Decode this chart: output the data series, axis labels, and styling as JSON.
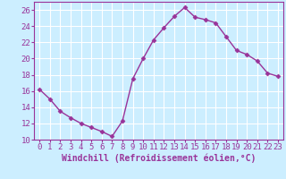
{
  "x": [
    0,
    1,
    2,
    3,
    4,
    5,
    6,
    7,
    8,
    9,
    10,
    11,
    12,
    13,
    14,
    15,
    16,
    17,
    18,
    19,
    20,
    21,
    22,
    23
  ],
  "y": [
    16.2,
    15.0,
    13.5,
    12.7,
    12.0,
    11.5,
    11.0,
    10.4,
    12.3,
    17.5,
    20.0,
    22.3,
    23.8,
    25.2,
    26.3,
    25.1,
    24.8,
    24.4,
    22.7,
    21.0,
    20.5,
    19.7,
    18.2,
    17.8
  ],
  "line_color": "#993399",
  "marker": "D",
  "marker_size": 2.5,
  "bg_color": "#cceeff",
  "grid_color": "#ffffff",
  "xlabel": "Windchill (Refroidissement éolien,°C)",
  "xlim": [
    -0.5,
    23.5
  ],
  "ylim": [
    10,
    27
  ],
  "yticks": [
    10,
    12,
    14,
    16,
    18,
    20,
    22,
    24,
    26
  ],
  "xticks": [
    0,
    1,
    2,
    3,
    4,
    5,
    6,
    7,
    8,
    9,
    10,
    11,
    12,
    13,
    14,
    15,
    16,
    17,
    18,
    19,
    20,
    21,
    22,
    23
  ],
  "xlabel_fontsize": 7.0,
  "tick_fontsize": 6.5,
  "tick_color": "#993399",
  "xlabel_color": "#993399",
  "spine_color": "#993399",
  "line_width": 1.0
}
